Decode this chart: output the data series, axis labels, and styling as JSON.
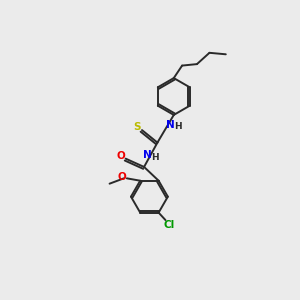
{
  "bg_color": "#ebebeb",
  "bond_color": "#2a2a2a",
  "atom_colors": {
    "N": "#0000ee",
    "O": "#ee0000",
    "S": "#bbbb00",
    "Cl": "#009900",
    "C": "#2a2a2a"
  },
  "figsize": [
    3.0,
    3.0
  ],
  "dpi": 100,
  "lw": 1.4,
  "fs": 7.5,
  "ring_r": 0.62
}
